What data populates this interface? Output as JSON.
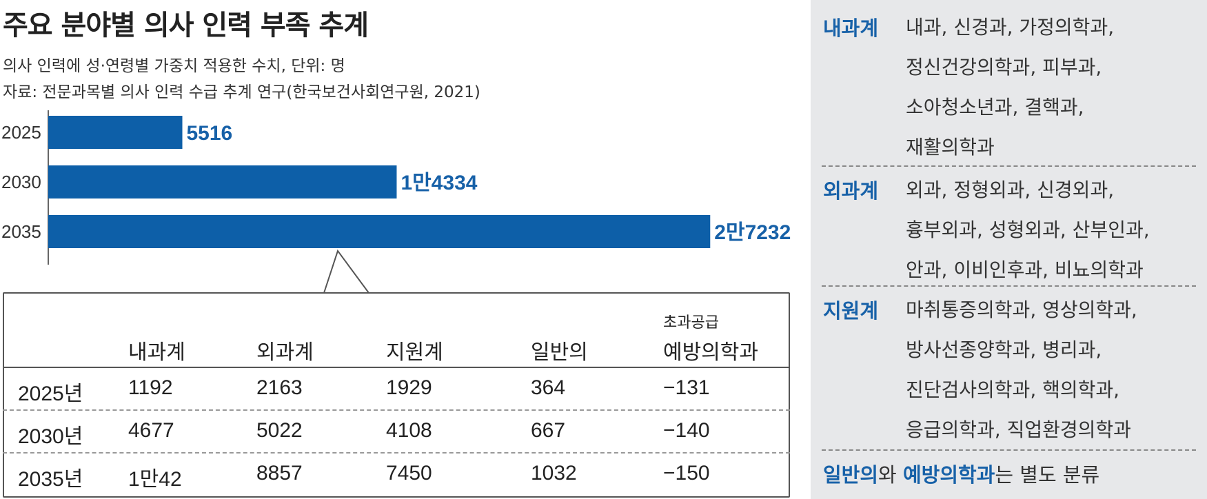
{
  "title": "주요 분야별 의사 인력 부족 추계",
  "subtitle": "의사 인력에 성·연령별 가중치 적용한 수치, 단위: 명",
  "source": "자료: 전문과목별 의사 인력 수급 추계 연구(한국보건사회연구원, 2021)",
  "chart_data": {
    "type": "bar",
    "orientation": "horizontal",
    "categories": [
      "2025",
      "2030",
      "2035"
    ],
    "values": [
      5516,
      14334,
      27232
    ],
    "value_labels": [
      "5516",
      "1만4334",
      "2만7232"
    ],
    "bar_color": "#0d5fa8",
    "label_color": "#1761a8",
    "xlim": [
      0,
      28500
    ],
    "grid": false
  },
  "table": {
    "headers": [
      {
        "top": "",
        "label": "내과계"
      },
      {
        "top": "",
        "label": "외과계"
      },
      {
        "top": "",
        "label": "지원계"
      },
      {
        "top": "",
        "label": "일반의"
      },
      {
        "top": "초과공급",
        "label": "예방의학과"
      }
    ],
    "rows": [
      {
        "year": "2025년",
        "cells": [
          "1192",
          "2163",
          "1929",
          "364",
          "−131"
        ]
      },
      {
        "year": "2030년",
        "cells": [
          "4677",
          "5022",
          "4108",
          "667",
          "−140"
        ]
      },
      {
        "year": "2035년",
        "cells": [
          "1만42",
          "8857",
          "7450",
          "1032",
          "−150"
        ]
      }
    ]
  },
  "panel": {
    "groups": [
      {
        "name": "내과계",
        "lines": [
          "내과, 신경과, 가정의학과,",
          "정신건강의학과, 피부과,",
          "소아청소년과, 결핵과,",
          "재활의학과"
        ]
      },
      {
        "name": "외과계",
        "lines": [
          "외과, 정형외과, 신경외과,",
          "흉부외과, 성형외과, 산부인과,",
          "안과, 이비인후과, 비뇨의학과"
        ]
      },
      {
        "name": "지원계",
        "lines": [
          "마취통증의학과, 영상의학과,",
          "방사선종양학과, 병리과,",
          "진단검사의학과, 핵의학과,",
          "응급의학과, 직업환경의학과"
        ]
      }
    ],
    "note": {
      "hl1": "일반의",
      "mid": "와 ",
      "hl2": "예방의학과",
      "rest": "는 별도 분류"
    },
    "background": "#e7e8ea",
    "accent": "#1761a8"
  }
}
